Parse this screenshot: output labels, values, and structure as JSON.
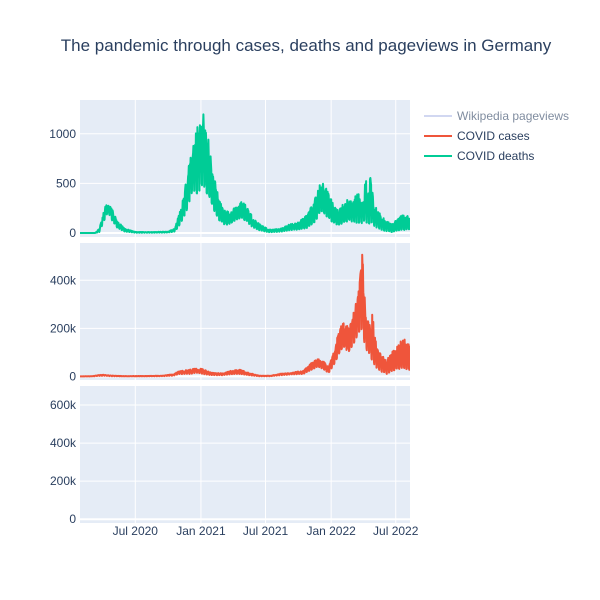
{
  "chart_data": {
    "type": "line",
    "title": "The pandemic through cases, deaths and pageviews in Germany",
    "x_start": "2020-01-28",
    "x_end": "2022-08-10",
    "x_ticks": [
      {
        "date": "2020-07-01",
        "label": "Jul 2020"
      },
      {
        "date": "2021-01-01",
        "label": "Jan 2021"
      },
      {
        "date": "2021-07-01",
        "label": "Jul 2021"
      },
      {
        "date": "2022-01-01",
        "label": "Jan 2022"
      },
      {
        "date": "2022-07-01",
        "label": "Jul 2022"
      }
    ],
    "legend": {
      "placement": "top-right",
      "items": [
        {
          "name": "Wikipedia pageviews",
          "color": "#b4bde8",
          "faded": true
        },
        {
          "name": "COVID cases",
          "color": "#EF553B",
          "faded": false
        },
        {
          "name": "COVID deaths",
          "color": "#00CC96",
          "faded": false
        }
      ]
    },
    "panels": [
      {
        "series": "COVID deaths",
        "color": "#00CC96",
        "ylim": [
          -40,
          1340
        ],
        "y_ticks": [
          {
            "value": 0,
            "label": "0"
          },
          {
            "value": 500,
            "label": "500"
          },
          {
            "value": 1000,
            "label": "1000"
          }
        ],
        "envelope": [
          [
            "2020-01-28",
            0,
            0
          ],
          [
            "2020-03-10",
            0,
            0
          ],
          [
            "2020-03-22",
            10,
            45
          ],
          [
            "2020-04-08",
            150,
            270
          ],
          [
            "2020-04-15",
            210,
            310
          ],
          [
            "2020-04-28",
            120,
            230
          ],
          [
            "2020-05-12",
            50,
            120
          ],
          [
            "2020-06-01",
            15,
            45
          ],
          [
            "2020-07-01",
            3,
            12
          ],
          [
            "2020-08-15",
            3,
            10
          ],
          [
            "2020-10-01",
            5,
            15
          ],
          [
            "2020-10-20",
            15,
            45
          ],
          [
            "2020-11-10",
            120,
            320
          ],
          [
            "2020-11-25",
            250,
            620
          ],
          [
            "2020-12-10",
            450,
            900
          ],
          [
            "2020-12-20",
            350,
            1050
          ],
          [
            "2020-12-30",
            400,
            1140
          ],
          [
            "2021-01-07",
            500,
            1250
          ],
          [
            "2021-01-14",
            400,
            1110
          ],
          [
            "2021-01-24",
            350,
            900
          ],
          [
            "2021-02-05",
            220,
            600
          ],
          [
            "2021-02-20",
            130,
            360
          ],
          [
            "2021-03-10",
            80,
            230
          ],
          [
            "2021-03-25",
            90,
            220
          ],
          [
            "2021-04-10",
            130,
            270
          ],
          [
            "2021-04-25",
            150,
            330
          ],
          [
            "2021-05-10",
            110,
            280
          ],
          [
            "2021-05-25",
            60,
            170
          ],
          [
            "2021-06-15",
            25,
            90
          ],
          [
            "2021-07-10",
            8,
            35
          ],
          [
            "2021-08-10",
            12,
            40
          ],
          [
            "2021-09-05",
            25,
            85
          ],
          [
            "2021-10-01",
            35,
            110
          ],
          [
            "2021-10-25",
            50,
            180
          ],
          [
            "2021-11-15",
            100,
            330
          ],
          [
            "2021-11-28",
            180,
            470
          ],
          [
            "2021-12-08",
            220,
            530
          ],
          [
            "2021-12-20",
            160,
            450
          ],
          [
            "2022-01-05",
            100,
            330
          ],
          [
            "2022-01-20",
            80,
            250
          ],
          [
            "2022-02-05",
            100,
            300
          ],
          [
            "2022-02-20",
            120,
            360
          ],
          [
            "2022-03-05",
            110,
            330
          ],
          [
            "2022-03-18",
            100,
            450
          ],
          [
            "2022-03-25",
            100,
            380
          ],
          [
            "2022-04-01",
            100,
            350
          ],
          [
            "2022-04-07",
            120,
            660
          ],
          [
            "2022-04-13",
            90,
            380
          ],
          [
            "2022-04-22",
            80,
            590
          ],
          [
            "2022-05-01",
            70,
            300
          ],
          [
            "2022-05-15",
            40,
            210
          ],
          [
            "2022-06-01",
            20,
            130
          ],
          [
            "2022-06-20",
            10,
            90
          ],
          [
            "2022-07-05",
            20,
            150
          ],
          [
            "2022-07-20",
            30,
            180
          ],
          [
            "2022-08-10",
            30,
            170
          ]
        ]
      },
      {
        "series": "COVID cases",
        "color": "#EF553B",
        "ylim": [
          -15000,
          555000
        ],
        "y_ticks": [
          {
            "value": 0,
            "label": "0"
          },
          {
            "value": 200000,
            "label": "200k"
          },
          {
            "value": 400000,
            "label": "400k"
          }
        ],
        "envelope": [
          [
            "2020-01-28",
            0,
            0
          ],
          [
            "2020-03-01",
            200,
            800
          ],
          [
            "2020-03-25",
            2000,
            6500
          ],
          [
            "2020-04-05",
            2500,
            7000
          ],
          [
            "2020-04-25",
            800,
            3500
          ],
          [
            "2020-06-01",
            200,
            1200
          ],
          [
            "2020-08-01",
            500,
            1800
          ],
          [
            "2020-09-15",
            1000,
            3000
          ],
          [
            "2020-10-15",
            3000,
            9000
          ],
          [
            "2020-11-01",
            9000,
            22000
          ],
          [
            "2020-12-01",
            10000,
            28000
          ],
          [
            "2020-12-20",
            15000,
            35000
          ],
          [
            "2021-01-05",
            10000,
            32000
          ],
          [
            "2021-02-01",
            5000,
            15000
          ],
          [
            "2021-03-01",
            5000,
            13000
          ],
          [
            "2021-04-01",
            10000,
            26000
          ],
          [
            "2021-04-20",
            10000,
            30000
          ],
          [
            "2021-05-15",
            5000,
            15000
          ],
          [
            "2021-06-15",
            500,
            3000
          ],
          [
            "2021-07-15",
            800,
            3000
          ],
          [
            "2021-08-15",
            5000,
            12000
          ],
          [
            "2021-09-10",
            8000,
            15000
          ],
          [
            "2021-10-15",
            10000,
            25000
          ],
          [
            "2021-11-10",
            30000,
            60000
          ],
          [
            "2021-11-25",
            40000,
            75000
          ],
          [
            "2021-12-10",
            30000,
            65000
          ],
          [
            "2021-12-25",
            15000,
            40000
          ],
          [
            "2022-01-10",
            50000,
            120000
          ],
          [
            "2022-01-25",
            100000,
            200000
          ],
          [
            "2022-02-05",
            120000,
            245000
          ],
          [
            "2022-02-20",
            100000,
            200000
          ],
          [
            "2022-03-10",
            150000,
            300000
          ],
          [
            "2022-03-20",
            180000,
            360000
          ],
          [
            "2022-03-29",
            200000,
            525000
          ],
          [
            "2022-04-02",
            150000,
            410000
          ],
          [
            "2022-04-12",
            100000,
            250000
          ],
          [
            "2022-04-22",
            80000,
            200000
          ],
          [
            "2022-04-25",
            60000,
            280000
          ],
          [
            "2022-05-05",
            40000,
            150000
          ],
          [
            "2022-05-20",
            20000,
            90000
          ],
          [
            "2022-06-05",
            10000,
            70000
          ],
          [
            "2022-06-20",
            20000,
            100000
          ],
          [
            "2022-07-05",
            30000,
            130000
          ],
          [
            "2022-07-20",
            30000,
            160000
          ],
          [
            "2022-08-10",
            25000,
            140000
          ]
        ]
      },
      {
        "series": "Wikipedia pageviews",
        "color": "#b4bde8",
        "ylim": [
          -20000,
          700000
        ],
        "y_ticks": [
          {
            "value": 0,
            "label": "0"
          },
          {
            "value": 200000,
            "label": "200k"
          },
          {
            "value": 400000,
            "label": "400k"
          },
          {
            "value": 600000,
            "label": "600k"
          }
        ],
        "envelope": []
      }
    ]
  }
}
